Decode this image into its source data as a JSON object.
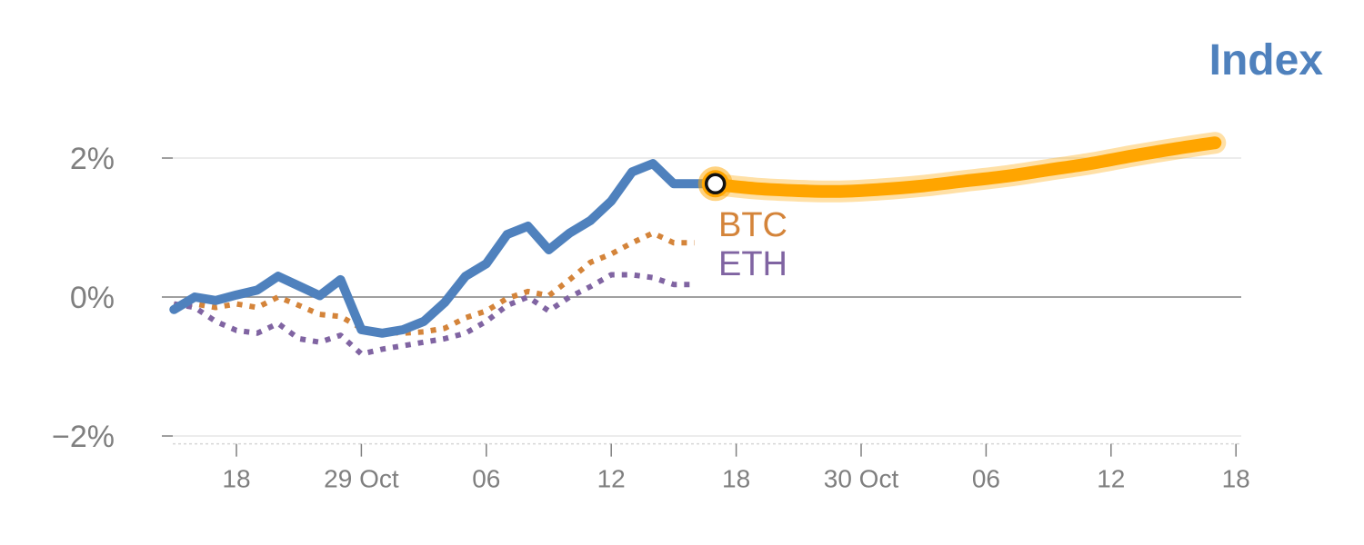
{
  "chart_data": {
    "type": "line",
    "title": "Index",
    "y_ticks": [
      {
        "value": 2,
        "label": "2%"
      },
      {
        "value": 0,
        "label": "0%"
      },
      {
        "value": -2,
        "label": "−2%"
      }
    ],
    "x_ticks": [
      {
        "value": 1,
        "label": "18"
      },
      {
        "value": 7,
        "label": "29 Oct"
      },
      {
        "value": 13,
        "label": "06"
      },
      {
        "value": 19,
        "label": "12"
      },
      {
        "value": 25,
        "label": "18"
      },
      {
        "value": 31,
        "label": "30 Oct"
      },
      {
        "value": 37,
        "label": "06"
      },
      {
        "value": 43,
        "label": "12"
      },
      {
        "value": 49,
        "label": "18"
      }
    ],
    "xlim": [
      -2.5,
      49
    ],
    "ylim": [
      -2.1,
      2.1
    ],
    "series": [
      {
        "name": "",
        "color": "#4f81bd",
        "style": "solid",
        "x": [
          -2,
          -1,
          0,
          1,
          2,
          3,
          4,
          5,
          6,
          7,
          8,
          9,
          10,
          11,
          12,
          13,
          14,
          15,
          16,
          17,
          18,
          19,
          20,
          21,
          22,
          23,
          24
        ],
        "y": [
          -0.18,
          0.0,
          -0.05,
          0.03,
          0.1,
          0.3,
          0.16,
          0.02,
          0.25,
          -0.47,
          -0.52,
          -0.47,
          -0.35,
          -0.08,
          0.3,
          0.48,
          0.9,
          1.02,
          0.68,
          0.92,
          1.1,
          1.38,
          1.8,
          1.92,
          1.63,
          1.63,
          1.63
        ]
      },
      {
        "name": "BTC",
        "color": "#d4843a",
        "style": "dotted",
        "x": [
          -2,
          -1,
          0,
          1,
          2,
          3,
          4,
          5,
          6,
          7,
          8,
          9,
          10,
          11,
          12,
          13,
          14,
          15,
          16,
          17,
          18,
          19,
          20,
          21,
          22,
          23,
          24
        ],
        "y": [
          -0.12,
          -0.1,
          -0.15,
          -0.1,
          -0.15,
          0.0,
          -0.12,
          -0.25,
          -0.28,
          -0.45,
          -0.5,
          -0.52,
          -0.5,
          -0.45,
          -0.3,
          -0.2,
          -0.02,
          0.08,
          0.02,
          0.25,
          0.5,
          0.62,
          0.78,
          0.92,
          0.78,
          0.78,
          0.78
        ]
      },
      {
        "name": "ETH",
        "color": "#8064a2",
        "style": "dotted",
        "x": [
          -2,
          -1,
          0,
          1,
          2,
          3,
          4,
          5,
          6,
          7,
          8,
          9,
          10,
          11,
          12,
          13,
          14,
          15,
          16,
          17,
          18,
          19,
          20,
          21,
          22,
          23,
          24
        ],
        "y": [
          -0.1,
          -0.15,
          -0.35,
          -0.48,
          -0.52,
          -0.38,
          -0.6,
          -0.65,
          -0.55,
          -0.82,
          -0.75,
          -0.7,
          -0.65,
          -0.6,
          -0.52,
          -0.35,
          -0.12,
          0.0,
          -0.2,
          0.0,
          0.15,
          0.32,
          0.32,
          0.28,
          0.18,
          0.18,
          0.18
        ]
      },
      {
        "name": "",
        "color": "#ffa500",
        "style": "forecast",
        "x": [
          24,
          26,
          28,
          30,
          32,
          34,
          36,
          38,
          40,
          42,
          44,
          46,
          48
        ],
        "y": [
          1.62,
          1.56,
          1.53,
          1.52,
          1.55,
          1.6,
          1.67,
          1.74,
          1.83,
          1.92,
          2.03,
          2.13,
          2.22
        ]
      }
    ],
    "marker": {
      "x": 24,
      "y": 1.63
    },
    "grid": true,
    "colors": {
      "title": "#4f81bd",
      "axis_text": "#7f7f7f",
      "zero_line": "#808080",
      "grid": "#e0e0e0"
    }
  }
}
